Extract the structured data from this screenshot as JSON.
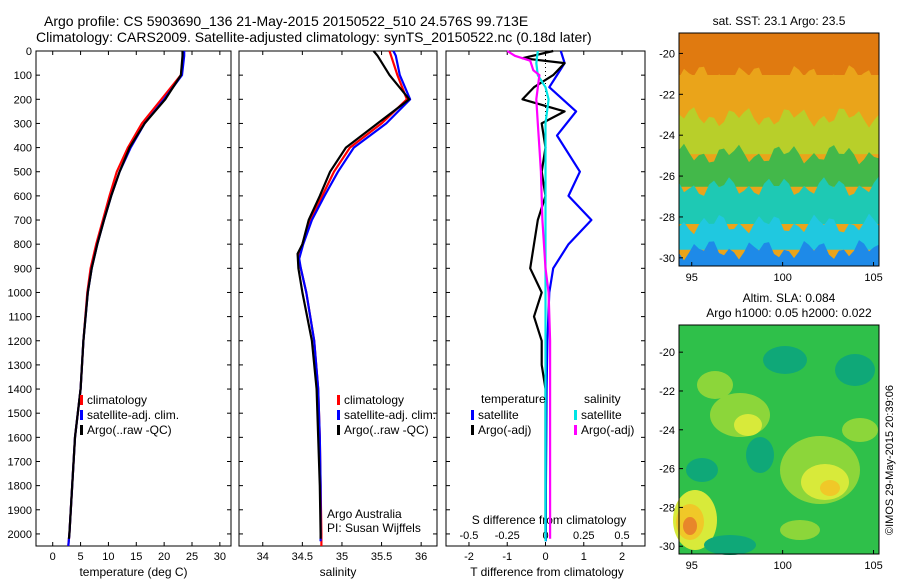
{
  "header": {
    "line1": "Argo profile: CS 5903690_136 21-May-2015 20150522_510 24.576S 99.713E",
    "line2": "Climatology: CARS2009. Satellite-adjusted climatology: synTS_20150522.nc (0.18d later)"
  },
  "colors": {
    "climatology": "#ff0000",
    "satellite_adj": "#0000ff",
    "argo": "#000000",
    "sat_salinity": "#00e5e5",
    "argo_adj_salinity": "#ff00ff"
  },
  "chart_data": [
    {
      "type": "line",
      "id": "temperature",
      "xlabel": "temperature (deg C)",
      "xlim": [
        -3,
        32
      ],
      "xticks": [
        "0",
        "5",
        "10",
        "15",
        "20",
        "25",
        "30"
      ],
      "ylim": [
        0,
        2050
      ],
      "yticks": [
        "0",
        "100",
        "200",
        "300",
        "400",
        "500",
        "600",
        "700",
        "800",
        "900",
        "1000",
        "1100",
        "1200",
        "1300",
        "1400",
        "1500",
        "1600",
        "1700",
        "1800",
        "1900",
        "2000"
      ],
      "legend": [
        "climatology",
        "satellite-adj. clim.",
        "Argo(..raw -QC)"
      ],
      "series": [
        {
          "name": "climatology",
          "color_key": "climatology",
          "points": [
            [
              23.4,
              0
            ],
            [
              23.4,
              20
            ],
            [
              23.0,
              100
            ],
            [
              19.5,
              200
            ],
            [
              16.0,
              300
            ],
            [
              13.5,
              400
            ],
            [
              11.5,
              500
            ],
            [
              10.2,
              600
            ],
            [
              9.0,
              700
            ],
            [
              7.8,
              800
            ],
            [
              6.8,
              900
            ],
            [
              6.2,
              1000
            ],
            [
              5.5,
              1200
            ],
            [
              5.0,
              1400
            ],
            [
              4.0,
              1600
            ],
            [
              3.5,
              1800
            ],
            [
              3.0,
              2000
            ],
            [
              2.8,
              2050
            ]
          ]
        },
        {
          "name": "satellite-adj. clim.",
          "color_key": "satellite_adj",
          "points": [
            [
              23.6,
              0
            ],
            [
              23.6,
              20
            ],
            [
              23.2,
              100
            ],
            [
              20.0,
              200
            ],
            [
              16.5,
              300
            ],
            [
              14.0,
              400
            ],
            [
              12.0,
              500
            ],
            [
              10.5,
              600
            ],
            [
              9.2,
              700
            ],
            [
              8.0,
              800
            ],
            [
              7.0,
              900
            ],
            [
              6.3,
              1000
            ],
            [
              5.5,
              1200
            ],
            [
              5.0,
              1400
            ],
            [
              4.0,
              1600
            ],
            [
              3.5,
              1800
            ],
            [
              3.0,
              2000
            ],
            [
              2.8,
              2050
            ]
          ]
        },
        {
          "name": "Argo(..raw -QC)",
          "color_key": "argo",
          "points": [
            [
              23.3,
              0
            ],
            [
              23.3,
              20
            ],
            [
              23.0,
              100
            ],
            [
              20.2,
              200
            ],
            [
              16.5,
              300
            ],
            [
              13.8,
              400
            ],
            [
              12.0,
              500
            ],
            [
              10.5,
              600
            ],
            [
              9.2,
              700
            ],
            [
              8.0,
              800
            ],
            [
              7.0,
              900
            ],
            [
              6.3,
              1000
            ],
            [
              5.5,
              1200
            ],
            [
              5.0,
              1400
            ],
            [
              4.0,
              1600
            ],
            [
              3.5,
              1800
            ],
            [
              3.0,
              2000
            ],
            [
              2.9,
              2020
            ]
          ]
        }
      ]
    },
    {
      "type": "line",
      "id": "salinity",
      "xlabel": "salinity",
      "xlim": [
        33.7,
        36.2
      ],
      "xticks": [
        "34",
        "34.5",
        "35",
        "35.5",
        "36"
      ],
      "ylim": [
        0,
        2050
      ],
      "legend": [
        "climatology",
        "satellite-adj. clim.",
        "Argo(..raw -QC)"
      ],
      "series": [
        {
          "name": "climatology",
          "color_key": "climatology",
          "points": [
            [
              35.6,
              0
            ],
            [
              35.62,
              20
            ],
            [
              35.7,
              100
            ],
            [
              35.82,
              200
            ],
            [
              35.5,
              300
            ],
            [
              35.1,
              400
            ],
            [
              34.9,
              500
            ],
            [
              34.75,
              600
            ],
            [
              34.6,
              700
            ],
            [
              34.5,
              800
            ],
            [
              34.45,
              860
            ],
            [
              34.48,
              900
            ],
            [
              34.55,
              1000
            ],
            [
              34.65,
              1200
            ],
            [
              34.7,
              1400
            ],
            [
              34.72,
              1600
            ],
            [
              34.73,
              1800
            ],
            [
              34.74,
              2000
            ],
            [
              34.74,
              2050
            ]
          ]
        },
        {
          "name": "satellite-adj. clim.",
          "color_key": "satellite_adj",
          "points": [
            [
              35.65,
              0
            ],
            [
              35.68,
              20
            ],
            [
              35.73,
              100
            ],
            [
              35.86,
              200
            ],
            [
              35.56,
              300
            ],
            [
              35.15,
              400
            ],
            [
              34.95,
              500
            ],
            [
              34.78,
              600
            ],
            [
              34.62,
              700
            ],
            [
              34.51,
              800
            ],
            [
              34.46,
              860
            ],
            [
              34.48,
              900
            ],
            [
              34.55,
              1000
            ],
            [
              34.65,
              1200
            ],
            [
              34.7,
              1400
            ],
            [
              34.72,
              1600
            ],
            [
              34.73,
              1800
            ],
            [
              34.73,
              2000
            ],
            [
              34.73,
              2030
            ]
          ]
        },
        {
          "name": "Argo(..raw -QC)",
          "color_key": "argo",
          "points": [
            [
              35.4,
              0
            ],
            [
              35.45,
              20
            ],
            [
              35.6,
              100
            ],
            [
              35.85,
              200
            ],
            [
              35.45,
              300
            ],
            [
              35.05,
              400
            ],
            [
              34.85,
              500
            ],
            [
              34.72,
              600
            ],
            [
              34.58,
              700
            ],
            [
              34.5,
              800
            ],
            [
              34.44,
              840
            ],
            [
              34.45,
              900
            ],
            [
              34.5,
              1000
            ],
            [
              34.62,
              1200
            ],
            [
              34.68,
              1400
            ],
            [
              34.7,
              1600
            ],
            [
              34.72,
              1800
            ],
            [
              34.73,
              2000
            ],
            [
              34.73,
              2020
            ]
          ]
        }
      ],
      "annotation": [
        "Argo Australia",
        "PI: Susan Wijffels"
      ]
    },
    {
      "type": "line",
      "id": "differences",
      "xlabel": "T difference from climatology",
      "xlim": [
        -2.6,
        2.6
      ],
      "xticks": [
        "-2",
        "-1",
        "0",
        "1",
        "2"
      ],
      "xlabel_top": "S difference from climatology",
      "xlim_top": [
        -0.65,
        0.65
      ],
      "xticks_top": [
        "-0.5",
        "-0.25",
        "0",
        "0.25",
        "0.5"
      ],
      "ylim": [
        0,
        2050
      ],
      "legend_temperature_title": "temperature",
      "legend_temperature": [
        "satellite",
        "Argo(-adj)"
      ],
      "legend_salinity_title": "salinity",
      "legend_salinity": [
        "satellite",
        "Argo(-adj)"
      ],
      "series": [
        {
          "name": "satellite",
          "group": "temperature",
          "color_key": "satellite_adj",
          "points": [
            [
              0.4,
              0
            ],
            [
              0.5,
              50
            ],
            [
              0.3,
              100
            ],
            [
              0.1,
              150
            ],
            [
              0.8,
              250
            ],
            [
              0.3,
              350
            ],
            [
              0.9,
              500
            ],
            [
              0.6,
              600
            ],
            [
              1.2,
              700
            ],
            [
              0.6,
              800
            ],
            [
              0.2,
              900
            ],
            [
              0.1,
              1000
            ],
            [
              0.05,
              1200
            ],
            [
              0.03,
              1400
            ],
            [
              0.02,
              1600
            ],
            [
              0.01,
              1800
            ],
            [
              0.01,
              2000
            ],
            [
              0.01,
              2030
            ]
          ]
        },
        {
          "name": "Argo(-adj)",
          "group": "temperature",
          "color_key": "argo",
          "points": [
            [
              0.2,
              0
            ],
            [
              -0.6,
              30
            ],
            [
              0.5,
              50
            ],
            [
              0.2,
              100
            ],
            [
              -0.3,
              150
            ],
            [
              -0.6,
              200
            ],
            [
              0.5,
              250
            ],
            [
              -0.1,
              300
            ],
            [
              0.0,
              400
            ],
            [
              -0.1,
              500
            ],
            [
              0.0,
              600
            ],
            [
              -0.2,
              700
            ],
            [
              -0.3,
              800
            ],
            [
              -0.4,
              900
            ],
            [
              -0.1,
              1000
            ],
            [
              -0.3,
              1100
            ],
            [
              -0.1,
              1200
            ],
            [
              -0.1,
              1300
            ],
            [
              0.0,
              1400
            ],
            [
              0.0,
              1600
            ],
            [
              0.0,
              1800
            ],
            [
              0.0,
              2000
            ],
            [
              0.0,
              2020
            ]
          ]
        },
        {
          "name": "satellite",
          "group": "salinity",
          "color_key": "sat_salinity",
          "points": [
            [
              -0.05,
              0
            ],
            [
              -0.06,
              50
            ],
            [
              -0.05,
              100
            ],
            [
              0.0,
              150
            ],
            [
              0.02,
              200
            ],
            [
              0.0,
              300
            ],
            [
              0.0,
              500
            ],
            [
              0.0,
              800
            ],
            [
              0.0,
              1000
            ],
            [
              0.0,
              1500
            ],
            [
              0.0,
              2000
            ],
            [
              0.0,
              2030
            ]
          ]
        },
        {
          "name": "Argo(-adj)",
          "group": "salinity",
          "color_key": "argo_adj_salinity",
          "points": [
            [
              -0.25,
              0
            ],
            [
              -0.2,
              20
            ],
            [
              -0.1,
              40
            ],
            [
              -0.08,
              80
            ],
            [
              -0.04,
              100
            ],
            [
              -0.06,
              200
            ],
            [
              -0.05,
              300
            ],
            [
              -0.04,
              400
            ],
            [
              -0.03,
              500
            ],
            [
              -0.02,
              700
            ],
            [
              0.0,
              900
            ],
            [
              0.02,
              1000
            ],
            [
              0.03,
              1200
            ],
            [
              0.03,
              1400
            ],
            [
              0.03,
              1600
            ],
            [
              0.03,
              1800
            ],
            [
              0.03,
              2000
            ],
            [
              0.03,
              2020
            ]
          ]
        }
      ]
    },
    {
      "type": "heatmap",
      "id": "sst_map",
      "title": "sat. SST: 23.1  Argo: 23.5",
      "xlim": [
        94.3,
        105.3
      ],
      "xticks": [
        "95",
        "100",
        "105"
      ],
      "ylim": [
        -30.4,
        -19.0
      ],
      "yticks": [
        "-20",
        "-22",
        "-24",
        "-26",
        "-28",
        "-30"
      ],
      "bands": [
        "#e07a10",
        "#eaa41a",
        "#b8cf2a",
        "#43b84a",
        "#1ec9b4",
        "#20c8e0",
        "#1e8ae8"
      ]
    },
    {
      "type": "heatmap",
      "id": "sla_map",
      "title_line1": "Altim. SLA: 0.084",
      "title_line2": "Argo h1000: 0.05 h2000: 0.022",
      "xlim": [
        94.3,
        105.3
      ],
      "xticks": [
        "95",
        "100",
        "105"
      ],
      "ylim": [
        -30.4,
        -18.6
      ],
      "yticks": [
        "-20",
        "-22",
        "-24",
        "-26",
        "-28",
        "-30"
      ],
      "palette": [
        "#0fa878",
        "#2fc04a",
        "#8cd63a",
        "#d8ea3a",
        "#f0c828",
        "#e8862a"
      ]
    }
  ],
  "footer_stamp": "©IMOS 29-May-2015 20:39:06"
}
